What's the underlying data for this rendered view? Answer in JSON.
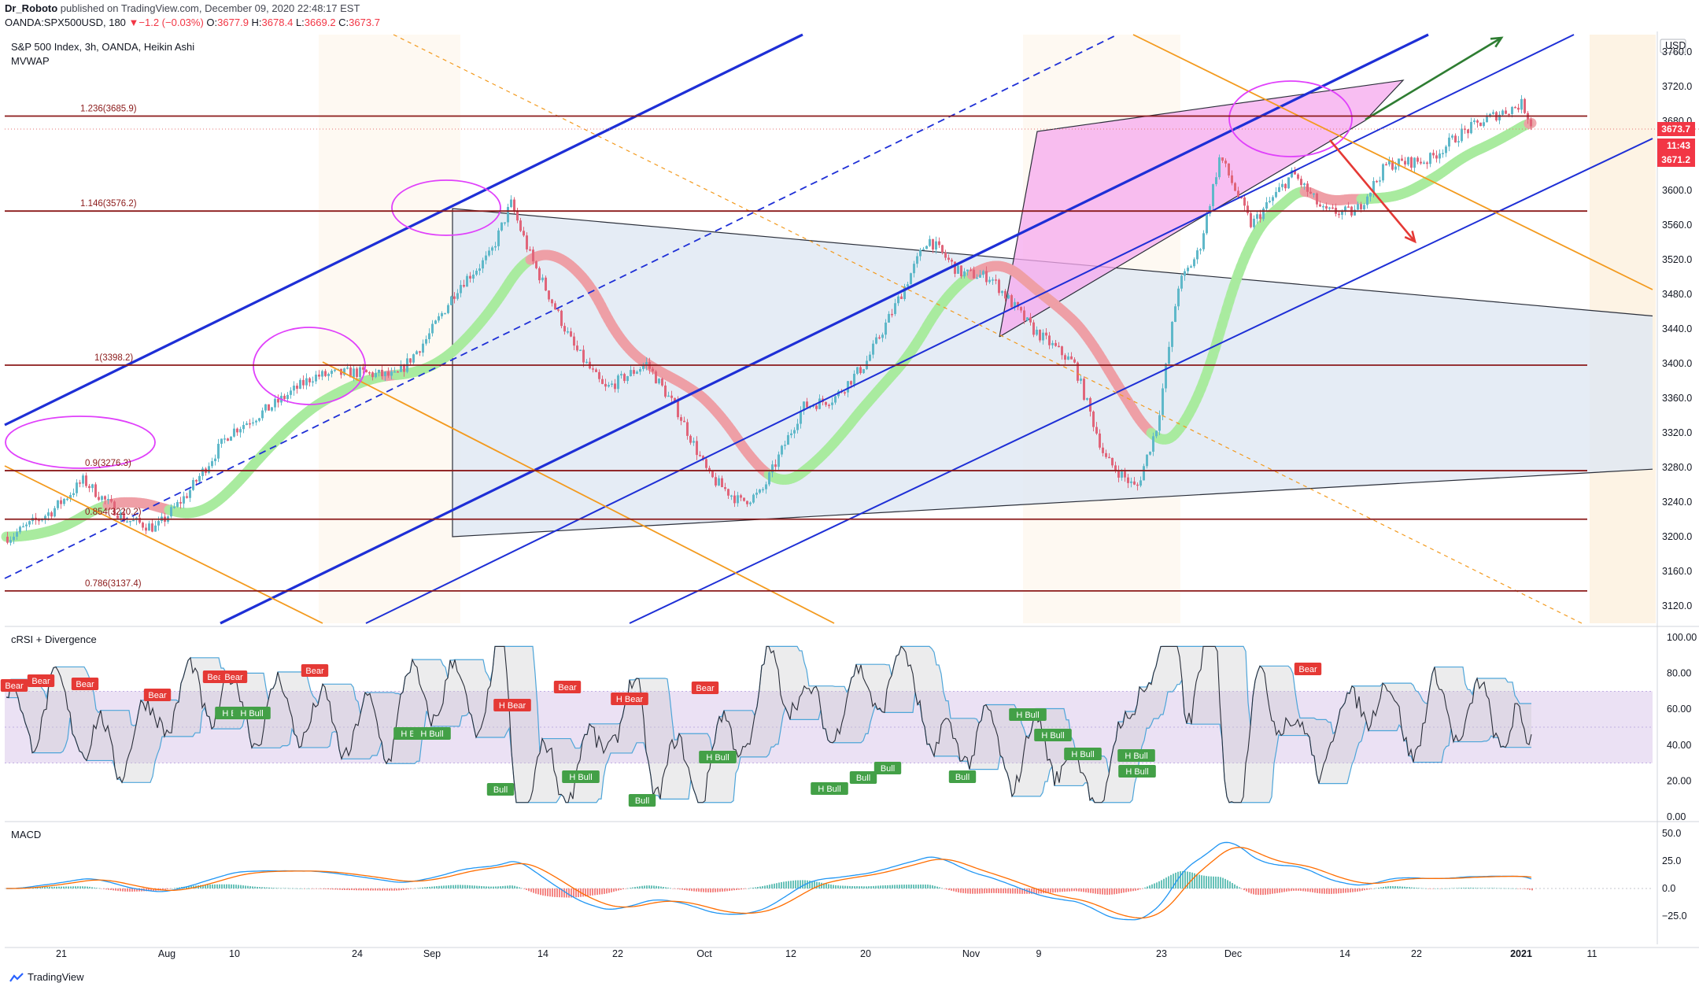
{
  "header": {
    "user": "Dr_Roboto",
    "published_text": " published on TradingView.com, December 09, 2020 22:48:17 EST",
    "symbol": "OANDA:SPX500USD, 180",
    "change_arrow": "▼",
    "change": "−1.2 (−0.03%)",
    "o_label": "O:",
    "o_value": "3677.9",
    "h_label": "H:",
    "h_value": "3678.4",
    "l_label": "L:",
    "l_value": "3669.2",
    "c_label": "C:",
    "c_value": "3673.7"
  },
  "main_pane": {
    "title": "S&P 500 Index, 3h, OANDA, Heikin Ashi",
    "indicator": "MVWAP",
    "currency": "USD",
    "price_tags": {
      "last": "3673.7",
      "countdown": "11:43",
      "other": "3671.2"
    }
  },
  "crsi_pane": {
    "title": "cRSI + Divergence"
  },
  "macd_pane": {
    "title": "MACD"
  },
  "footer": {
    "brand": "TradingView"
  },
  "colors": {
    "up": "#5fb8c9",
    "down": "#e0657a",
    "fib": "#8b1a1a",
    "channel": "#1e2fd6",
    "orange": "#f39a1e",
    "mvwap_up": "#a9eb9f",
    "mvwap_down": "#ef9fa6",
    "triangle_fill": "#dfe7f3",
    "wedge_fill": "#f6a8ee",
    "crsi_band": "#e6daf1",
    "macd_line": "#2196f3",
    "signal_line": "#ff6d00",
    "bear": "#e53935",
    "bull": "#43a047"
  },
  "chart_data": [
    {
      "type": "candlestick",
      "title": "S&P 500 Index, 3h, OANDA, Heikin Ashi",
      "y_axis_ticks": [
        "3760.0",
        "3720.0",
        "3680.0",
        "3640.0",
        "3600.0",
        "3560.0",
        "3520.0",
        "3480.0",
        "3440.0",
        "3400.0",
        "3360.0",
        "3320.0",
        "3280.0",
        "3240.0",
        "3200.0",
        "3160.0",
        "3120.0"
      ],
      "ylim": [
        3100,
        3780
      ],
      "x_axis_ticks": [
        "21",
        "Aug",
        "10",
        "24",
        "Sep",
        "14",
        "22",
        "Oct",
        "12",
        "20",
        "Nov",
        "9",
        "23",
        "Dec",
        "14",
        "22",
        "2021",
        "11"
      ],
      "price_path": [
        [
          "Jul 16",
          3200
        ],
        [
          "Jul 20",
          3230
        ],
        [
          "Jul 23",
          3265
        ],
        [
          "Jul 27",
          3220
        ],
        [
          "Jul 30",
          3210
        ],
        [
          "Aug 2",
          3250
        ],
        [
          "Aug 6",
          3320
        ],
        [
          "Aug 10",
          3350
        ],
        [
          "Aug 14",
          3385
        ],
        [
          "Aug 18",
          3390
        ],
        [
          "Aug 22",
          3385
        ],
        [
          "Aug 25",
          3430
        ],
        [
          "Aug 28",
          3490
        ],
        [
          "Aug 31",
          3525
        ],
        [
          "Sep 2",
          3585
        ],
        [
          "Sep 4",
          3520
        ],
        [
          "Sep 8",
          3420
        ],
        [
          "Sep 11",
          3370
        ],
        [
          "Sep 15",
          3400
        ],
        [
          "Sep 18",
          3345
        ],
        [
          "Sep 21",
          3270
        ],
        [
          "Sep 24",
          3240
        ],
        [
          "Sep 26",
          3250
        ],
        [
          "Sep 30",
          3350
        ],
        [
          "Oct 3",
          3360
        ],
        [
          "Oct 6",
          3400
        ],
        [
          "Oct 9",
          3470
        ],
        [
          "Oct 12",
          3545
        ],
        [
          "Oct 15",
          3505
        ],
        [
          "Oct 18",
          3500
        ],
        [
          "Oct 22",
          3440
        ],
        [
          "Oct 26",
          3400
        ],
        [
          "Oct 29",
          3290
        ],
        [
          "Nov 1",
          3255
        ],
        [
          "Nov 3",
          3330
        ],
        [
          "Nov 5",
          3490
        ],
        [
          "Nov 7",
          3530
        ],
        [
          "Nov 9",
          3640
        ],
        [
          "Nov 12",
          3560
        ],
        [
          "Nov 16",
          3620
        ],
        [
          "Nov 19",
          3575
        ],
        [
          "Nov 22",
          3575
        ],
        [
          "Nov 25",
          3630
        ],
        [
          "Nov 29",
          3635
        ],
        [
          "Dec 2",
          3665
        ],
        [
          "Dec 5",
          3685
        ],
        [
          "Dec 8",
          3700
        ],
        [
          "Dec 9",
          3673.7
        ]
      ],
      "horizontal_levels": [
        {
          "label": "1.236(3685.9)",
          "value": 3685.9
        },
        {
          "label": "1.146(3576.2)",
          "value": 3576.2
        },
        {
          "label": "1(3398.2)",
          "value": 3398.2
        },
        {
          "label": "0.9(3276.3)",
          "value": 3276.3
        },
        {
          "label": "0.854(3220.2)",
          "value": 3220.2
        },
        {
          "label": "0.786(3137.4)",
          "value": 3137.4
        }
      ]
    },
    {
      "type": "line",
      "title": "cRSI + Divergence",
      "y_axis_ticks": [
        "100.00",
        "80.00",
        "60.00",
        "40.00",
        "20.00",
        "0.00"
      ],
      "ylim": [
        0,
        100
      ],
      "band": [
        30,
        70
      ],
      "signals": [
        {
          "label": "Bear"
        },
        {
          "label": "Bear"
        },
        {
          "label": "Bear"
        },
        {
          "label": "Bear"
        },
        {
          "label": "Bear"
        },
        {
          "label": "Bear"
        },
        {
          "label": "Bear"
        },
        {
          "label": "H Bear"
        },
        {
          "label": "H Bear"
        },
        {
          "label": "Bear"
        },
        {
          "label": "Bear"
        },
        {
          "label": "H Bull"
        },
        {
          "label": "H Bull"
        },
        {
          "label": "H Bull"
        },
        {
          "label": "H Bull"
        },
        {
          "label": "Bull"
        },
        {
          "label": "H Bull"
        },
        {
          "label": "Bull"
        },
        {
          "label": "H Bull"
        },
        {
          "label": "H Bull"
        },
        {
          "label": "Bull"
        },
        {
          "label": "Bull"
        },
        {
          "label": "Bull"
        },
        {
          "label": "H Bull"
        },
        {
          "label": "H Bull"
        },
        {
          "label": "H Bull"
        },
        {
          "label": "H Bull"
        },
        {
          "label": "H Bull"
        },
        {
          "label": "Bear"
        }
      ]
    },
    {
      "type": "line",
      "title": "MACD",
      "y_axis_ticks": [
        "50.0",
        "25.0",
        "0.0",
        "−25.0"
      ],
      "ylim": [
        -35,
        55
      ]
    }
  ]
}
